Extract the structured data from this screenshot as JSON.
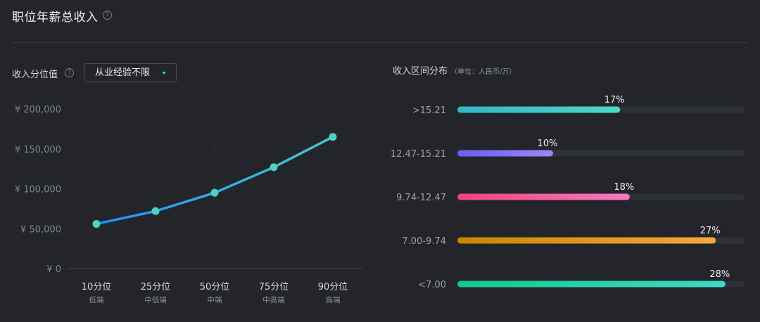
{
  "header": {
    "title": "职位年薪总收入",
    "help": "?"
  },
  "line_section": {
    "label": "收入分位值",
    "help": "?",
    "dropdown_value": "从业经验不限"
  },
  "bar_section": {
    "label": "收入区间分布",
    "unit": "（单位：人民币/万）"
  },
  "colors": {
    "line_start": "#1e90ff",
    "line_end": "#45c8c8",
    "point": "#4fd0c0",
    "dropdown_caret": "#36d1c0"
  },
  "chart_data": [
    {
      "type": "line",
      "ylim": [
        0,
        200000
      ],
      "y_ticks": [
        {
          "value": 0,
          "label": "¥ 0"
        },
        {
          "value": 50000,
          "label": "¥ 50,000"
        },
        {
          "value": 100000,
          "label": "¥ 100,000"
        },
        {
          "value": 150000,
          "label": "¥ 150,000"
        },
        {
          "value": 200000,
          "label": "¥ 200,000"
        }
      ],
      "categories": [
        "10分位",
        "25分位",
        "50分位",
        "75分位",
        "90分位"
      ],
      "sub_labels": [
        "低端",
        "中低端",
        "中端",
        "中高端",
        "高端"
      ],
      "values": [
        56000,
        72000,
        95000,
        127000,
        165000
      ],
      "grid": true
    },
    {
      "type": "bar",
      "orientation": "horizontal",
      "categories": [
        ">15.21",
        "12.47-15.21",
        "9.74-12.47",
        "7.00-9.74",
        "<7.00"
      ],
      "values": [
        17,
        10,
        18,
        27,
        28
      ],
      "labels": [
        "17%",
        "10%",
        "18%",
        "27%",
        "28%"
      ],
      "xlim": [
        0,
        30
      ],
      "colors": [
        [
          "#2fb7c6",
          "#4dd9c8"
        ],
        [
          "#6a5cf0",
          "#9c86f6"
        ],
        [
          "#f0457a",
          "#f57ac2"
        ],
        [
          "#c98600",
          "#f2a93a"
        ],
        [
          "#12c98d",
          "#3fd9c4"
        ]
      ]
    }
  ]
}
